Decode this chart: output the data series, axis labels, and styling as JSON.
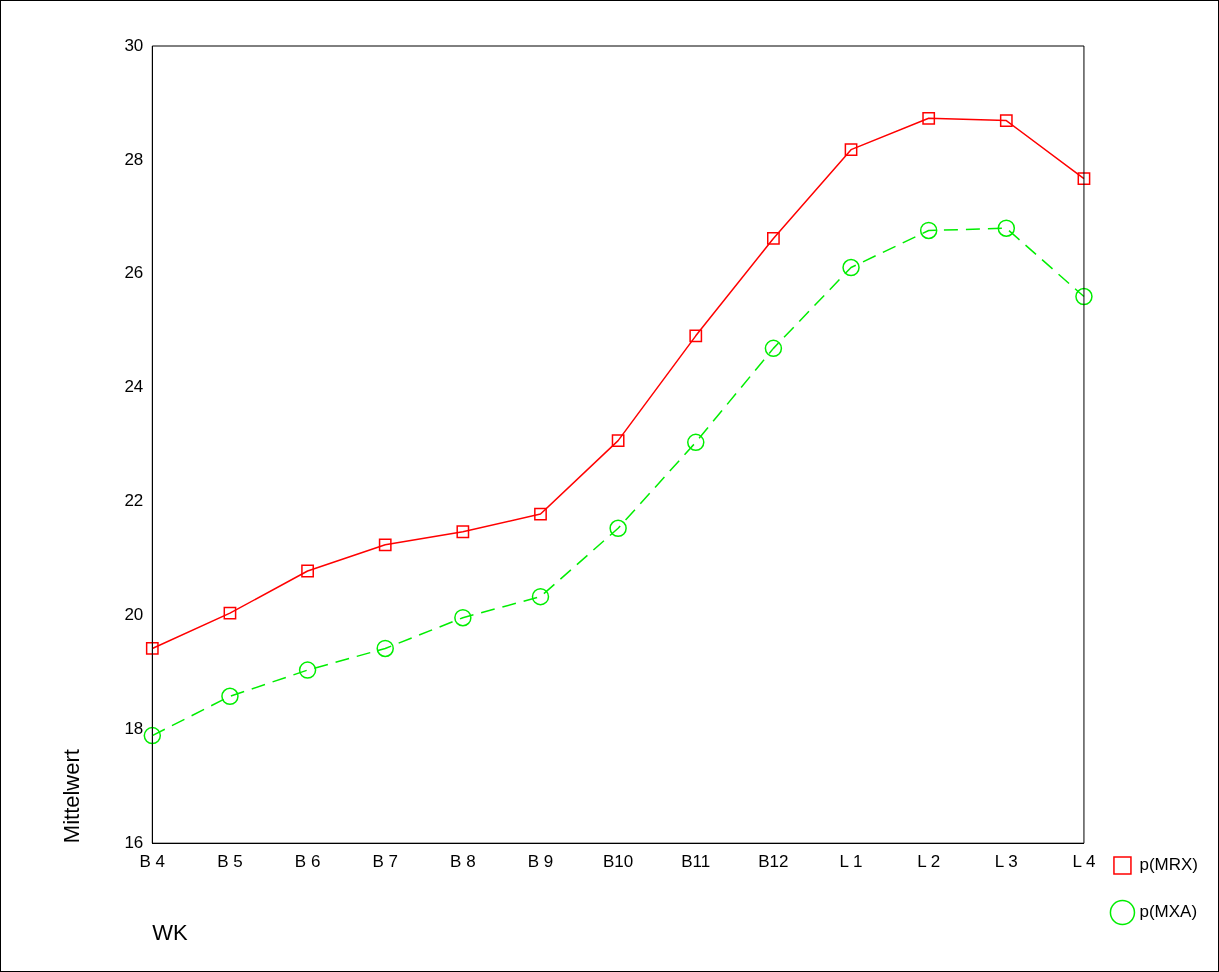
{
  "chart_data": {
    "type": "line",
    "xlabel": "WK",
    "ylabel": "Mittelwert",
    "categories": [
      "B 4",
      "B 5",
      "B 6",
      "B 7",
      "B 8",
      "B 9",
      "B10",
      "B11",
      "B12",
      "L 1",
      "L 2",
      "L 3",
      "L 4"
    ],
    "series": [
      {
        "name": "p(MRX)",
        "color": "#ff0000",
        "marker": "square",
        "line_style": "solid",
        "values": [
          19.42,
          20.04,
          20.78,
          21.24,
          21.47,
          21.78,
          23.07,
          24.91,
          26.62,
          28.18,
          28.73,
          28.69,
          27.67
        ]
      },
      {
        "name": "p(MXA)",
        "color": "#00ee00",
        "marker": "circle",
        "line_style": "dashed",
        "values": [
          17.89,
          18.58,
          19.04,
          19.42,
          19.96,
          20.33,
          21.53,
          23.04,
          24.69,
          26.11,
          26.76,
          26.8,
          25.6
        ]
      }
    ],
    "ylim": [
      16,
      30
    ],
    "yticks": [
      16,
      18,
      20,
      22,
      24,
      26,
      28,
      30
    ],
    "grid": false,
    "legend": "right"
  }
}
